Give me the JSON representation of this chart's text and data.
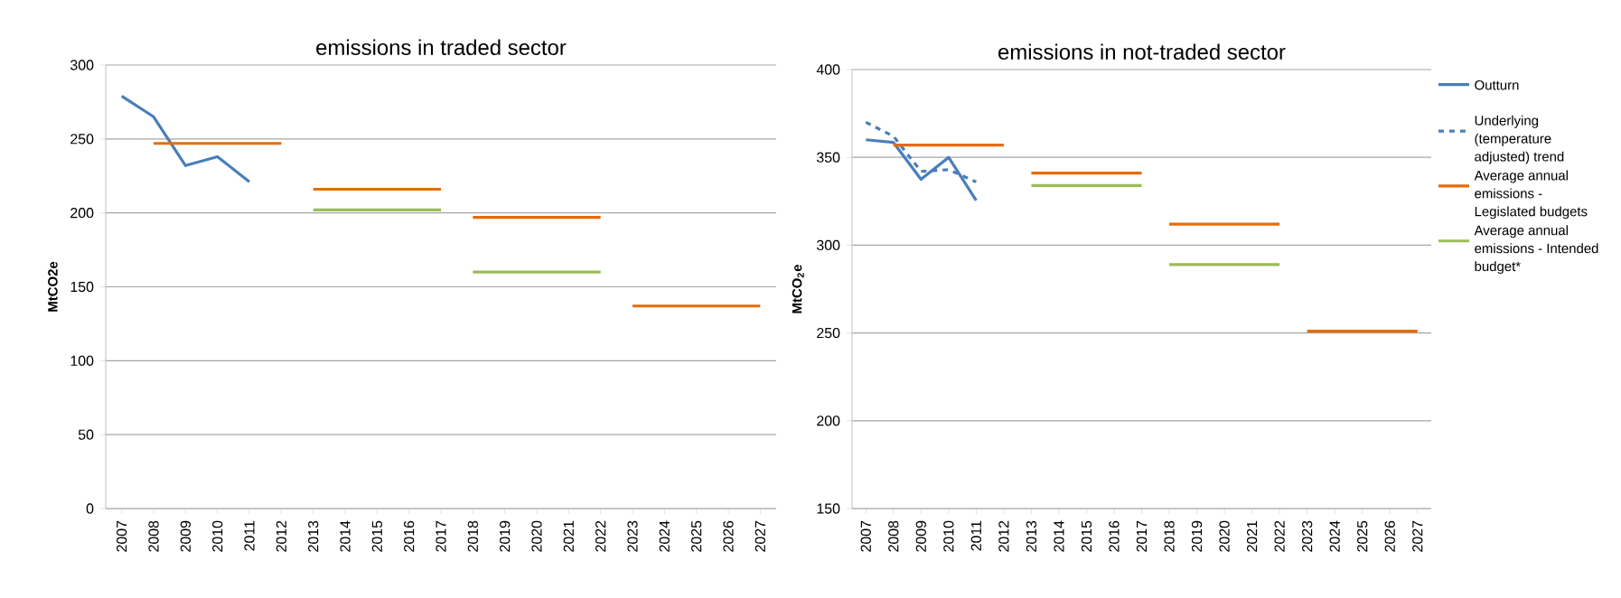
{
  "chart_data": [
    {
      "type": "line",
      "title": "emissions in traded sector",
      "ylabel": "MtCO2e",
      "categories": [
        "2007",
        "2008",
        "2009",
        "2010",
        "2011",
        "2012",
        "2013",
        "2014",
        "2015",
        "2016",
        "2017",
        "2018",
        "2019",
        "2020",
        "2021",
        "2022",
        "2023",
        "2024",
        "2025",
        "2026",
        "2027"
      ],
      "ylim": [
        0,
        300
      ],
      "yticks": [
        0,
        50,
        100,
        150,
        200,
        250,
        300
      ],
      "grid": "y",
      "legend": false,
      "series": [
        {
          "color": "#4a7ebb",
          "line_style": "solid",
          "values": [
            279,
            265,
            232,
            238,
            221,
            null,
            null,
            null,
            null,
            null,
            null,
            null,
            null,
            null,
            null,
            null,
            null,
            null,
            null,
            null,
            null
          ]
        },
        {
          "color": "#e46c0a",
          "line_style": "solid",
          "values": [
            null,
            247,
            247,
            247,
            247,
            247,
            null,
            null,
            null,
            null,
            null,
            null,
            null,
            null,
            null,
            null,
            null,
            null,
            null,
            null,
            null
          ]
        },
        {
          "color": "#9bbb59",
          "line_style": "solid",
          "values": [
            null,
            null,
            null,
            null,
            null,
            null,
            202,
            202,
            202,
            202,
            202,
            null,
            null,
            null,
            null,
            null,
            null,
            null,
            null,
            null,
            null
          ]
        },
        {
          "color": "#e46c0a",
          "line_style": "solid",
          "values": [
            null,
            null,
            null,
            null,
            null,
            null,
            216,
            216,
            216,
            216,
            216,
            null,
            null,
            null,
            null,
            null,
            null,
            null,
            null,
            null,
            null
          ]
        },
        {
          "color": "#e46c0a",
          "line_style": "solid",
          "values": [
            null,
            null,
            null,
            null,
            null,
            null,
            null,
            null,
            null,
            null,
            null,
            197,
            197,
            197,
            197,
            197,
            null,
            null,
            null,
            null,
            null
          ]
        },
        {
          "color": "#9bbb59",
          "line_style": "solid",
          "values": [
            null,
            null,
            null,
            null,
            null,
            null,
            null,
            null,
            null,
            null,
            null,
            160,
            160,
            160,
            160,
            160,
            null,
            null,
            null,
            null,
            null
          ]
        },
        {
          "color": "#e46c0a",
          "line_style": "solid",
          "values": [
            null,
            null,
            null,
            null,
            null,
            null,
            null,
            null,
            null,
            null,
            null,
            null,
            null,
            null,
            null,
            null,
            137,
            137,
            137,
            137,
            137
          ]
        }
      ]
    },
    {
      "type": "line",
      "title": "emissions in not-traded sector",
      "ylabel": "MtCO$_{2}$e",
      "categories": [
        "2007",
        "2008",
        "2009",
        "2010",
        "2011",
        "2012",
        "2013",
        "2014",
        "2015",
        "2016",
        "2017",
        "2018",
        "2019",
        "2020",
        "2021",
        "2022",
        "2023",
        "2024",
        "2025",
        "2026",
        "2027"
      ],
      "ylim": [
        150,
        400
      ],
      "yticks": [
        150,
        200,
        250,
        300,
        350,
        400
      ],
      "grid": "y",
      "legend": "right",
      "series": [
        {
          "name": "Outturn",
          "color": "#4a7ebb",
          "line_style": "solid",
          "values": [
            360,
            358.5,
            337.5,
            350,
            325.5,
            null,
            null,
            null,
            null,
            null,
            null,
            null,
            null,
            null,
            null,
            null,
            null,
            null,
            null,
            null,
            null
          ]
        },
        {
          "name": "Underlying (temperature adjusted) trend",
          "color": "#4a7ebb",
          "line_style": "dashed",
          "values": [
            370,
            362,
            342,
            343,
            336,
            null,
            null,
            null,
            null,
            null,
            null,
            null,
            null,
            null,
            null,
            null,
            null,
            null,
            null,
            null,
            null
          ]
        },
        {
          "name": "Average annual emissions - Legislated budgets",
          "color": "#e46c0a",
          "line_style": "solid",
          "values": [
            null,
            357,
            357,
            357,
            357,
            357,
            null,
            null,
            null,
            null,
            null,
            null,
            null,
            null,
            null,
            null,
            null,
            null,
            null,
            null,
            null
          ]
        },
        {
          "name": "Average annual emissions - Intended budget*",
          "color": "#9bbb59",
          "line_style": "solid",
          "values": [
            null,
            null,
            null,
            null,
            null,
            null,
            334,
            334,
            334,
            334,
            334,
            null,
            null,
            null,
            null,
            null,
            null,
            null,
            null,
            null,
            null
          ]
        },
        {
          "color": "#e46c0a",
          "line_style": "solid",
          "values": [
            null,
            null,
            null,
            null,
            null,
            null,
            341,
            341,
            341,
            341,
            341,
            null,
            null,
            null,
            null,
            null,
            null,
            null,
            null,
            null,
            null
          ]
        },
        {
          "color": "#e46c0a",
          "line_style": "solid",
          "values": [
            null,
            null,
            null,
            null,
            null,
            null,
            null,
            null,
            null,
            null,
            null,
            312,
            312,
            312,
            312,
            312,
            null,
            null,
            null,
            null,
            null
          ]
        },
        {
          "color": "#9bbb59",
          "line_style": "solid",
          "values": [
            null,
            null,
            null,
            null,
            null,
            null,
            null,
            null,
            null,
            null,
            null,
            289,
            289,
            289,
            289,
            289,
            null,
            null,
            null,
            null,
            null
          ]
        },
        {
          "color": "#e46c0a",
          "line_style": "solid",
          "values": [
            null,
            null,
            null,
            null,
            null,
            null,
            null,
            null,
            null,
            null,
            null,
            null,
            null,
            null,
            null,
            null,
            251,
            251,
            251,
            251,
            251
          ]
        }
      ]
    }
  ]
}
